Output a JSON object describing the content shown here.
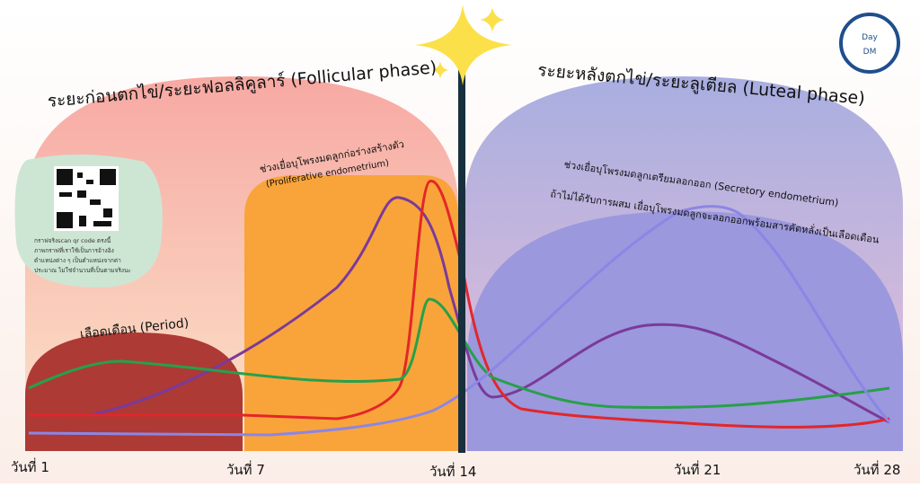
{
  "follicular_title": "ระยะก่อนตกไข่/ระยะฟอลลิคูลาร์ (Follicular phase)",
  "luteal_title": "ระยะหลังตกไข่/ระยะลูเตียล (Luteal phase)",
  "period_label": "เลือดเดือน (Period)",
  "proliferative": {
    "line1": "ช่วงเยื่อบุโพรงมดลูกก่อร่างสร้างตัว",
    "line2": "(Proliferative endometrium)"
  },
  "secretory": {
    "line1": "ช่วงเยื่อบุโพรงมดลูกเตรียมลอกออก (Secretory endometrium)",
    "line2": "ถ้าไม่ได้รับการผสม เยื่อบุโพรงมดลูกจะลอกออกพร้อมสารคัดหลั่งเป็นเลือดเดือน"
  },
  "qr_note": [
    "กราฟจริงscan qr code ตรงนี้",
    "ภาพกราฟที่เราใช้เป็นการอ้างอิง",
    "ตำแหน่งต่าง ๆ เป็นตำแหน่งจากค่า",
    "ประมาณ ไม่ใช่จำนวนที่เป็นตามจริงนะ"
  ],
  "logo": {
    "top": "Day",
    "bottom": "DM"
  },
  "day_labels": [
    "วันที่ 1",
    "วันที่ 7",
    "วันที่ 14",
    "วันที่ 21",
    "วันที่ 28"
  ]
}
